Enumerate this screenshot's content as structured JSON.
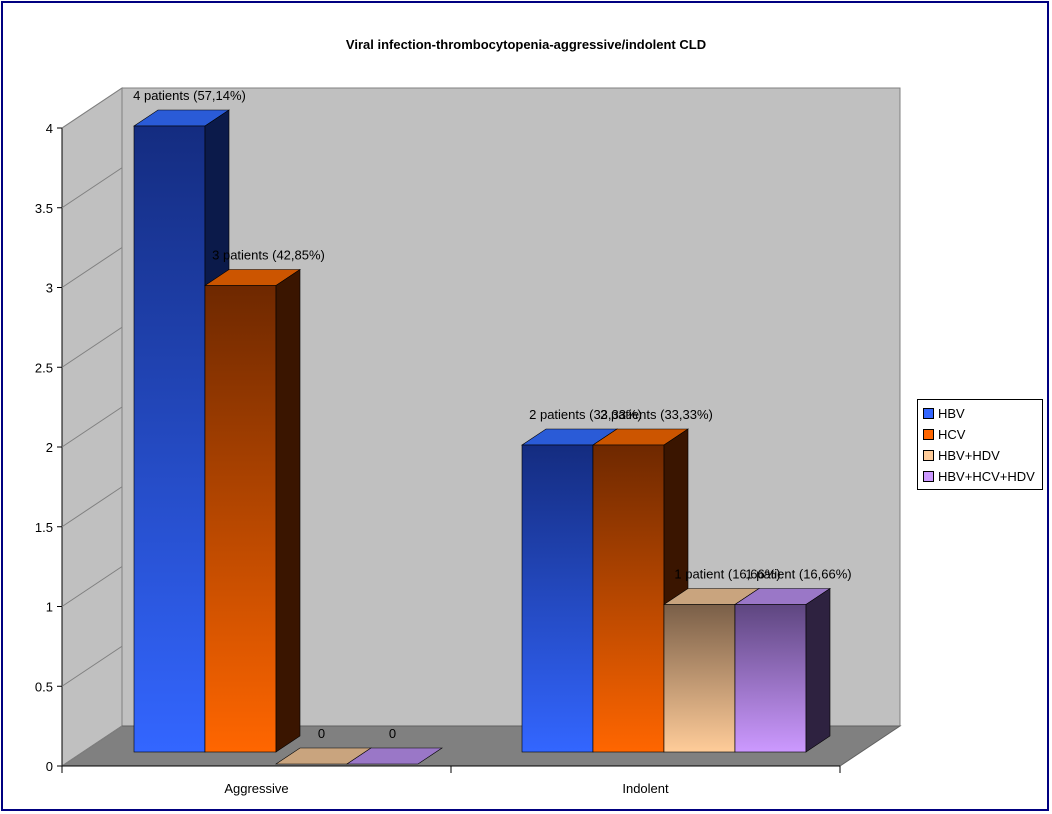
{
  "chart_data": {
    "type": "bar",
    "title": "Viral infection-thrombocytopenia-aggressive/indolent CLD",
    "xlabel": "",
    "ylabel": "",
    "categories": [
      "Aggressive",
      "Indolent"
    ],
    "ylim": [
      0,
      4
    ],
    "yticks": [
      "0",
      "0.5",
      "1",
      "1.5",
      "2",
      "2.5",
      "3",
      "3.5",
      "4"
    ],
    "legend_position": "right",
    "series": [
      {
        "name": "HBV",
        "values": [
          4,
          2
        ],
        "labels": [
          "4 patients (57,14%)",
          "2 patients (33,33%)"
        ],
        "color": "#2a5bd7",
        "light": "#3366ff",
        "dark": "#142c80",
        "side": "#0b1a4a"
      },
      {
        "name": "HCV",
        "values": [
          3,
          2
        ],
        "labels": [
          "3 patients (42,85%)",
          "2 patients (33,33%)"
        ],
        "color": "#cc5500",
        "light": "#ff6600",
        "dark": "#6e2800",
        "side": "#3a1500"
      },
      {
        "name": "HBV+HDV",
        "values": [
          0,
          1
        ],
        "labels": [
          "0",
          "1 patient (16,66%)"
        ],
        "color": "#c9a47e",
        "light": "#ffcc99",
        "dark": "#7a5f48",
        "side": "#3d3024"
      },
      {
        "name": "HBV+HCV+HDV",
        "values": [
          0,
          1
        ],
        "labels": [
          "0",
          "1 patient (16,66%)"
        ],
        "color": "#9a77c7",
        "light": "#cc99ff",
        "dark": "#5e4680",
        "side": "#2e2240"
      }
    ]
  }
}
